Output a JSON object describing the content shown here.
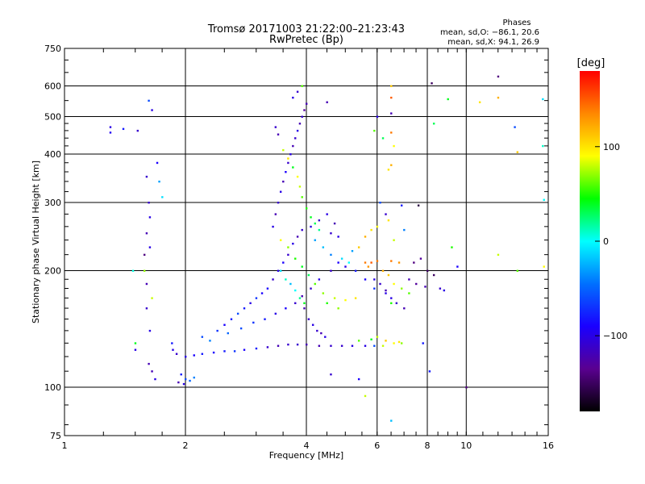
{
  "chart_data": {
    "type": "scatter",
    "title": "Tromsø 20171003 21:22:00–21:23:43",
    "subtitle": "RwPretec (Bp)",
    "xlabel": "Frequency [MHz]",
    "ylabel": "Stationary phase Virtual Height [km]",
    "x_scale": "log",
    "y_scale": "log",
    "xlim": [
      1,
      16
    ],
    "ylim": [
      75,
      750
    ],
    "x_ticks": [
      1,
      2,
      4,
      6,
      8,
      10,
      16
    ],
    "x_tick_labels": [
      "1",
      "2",
      "4",
      "6",
      "8",
      "10",
      "16"
    ],
    "y_ticks": [
      75,
      100,
      200,
      300,
      400,
      500,
      600,
      750
    ],
    "y_tick_labels": [
      "75",
      "100",
      "200",
      "300",
      "400",
      "500",
      "600",
      "750"
    ],
    "grid": true,
    "annotation": {
      "heading": "Phases",
      "line_o": "mean, sd,O: −86.1, 20.6",
      "line_x": "mean, sd,X:  94.1, 26.9"
    },
    "colorbar": {
      "label": "[deg]",
      "range": [
        -180,
        180
      ],
      "ticks": [
        100,
        0,
        -100
      ],
      "tick_labels": [
        "100",
        "0",
        "−100"
      ],
      "colors": [
        "#000000",
        "#5a0090",
        "#1a00ff",
        "#0070ff",
        "#00ffff",
        "#00ff00",
        "#ffff00",
        "#ff8800",
        "#ff0000"
      ]
    },
    "points": [
      [
        1.3,
        470,
        -100
      ],
      [
        1.3,
        455,
        -95
      ],
      [
        1.52,
        460,
        -110
      ],
      [
        1.4,
        465,
        -80
      ],
      [
        1.48,
        200,
        5
      ],
      [
        1.5,
        130,
        40
      ],
      [
        1.62,
        550,
        -60
      ],
      [
        1.65,
        520,
        -100
      ],
      [
        1.6,
        350,
        -110
      ],
      [
        1.7,
        380,
        -90
      ],
      [
        1.72,
        340,
        -30
      ],
      [
        1.75,
        310,
        -10
      ],
      [
        1.62,
        300,
        -110
      ],
      [
        1.63,
        275,
        -100
      ],
      [
        1.6,
        250,
        -120
      ],
      [
        1.63,
        230,
        -100
      ],
      [
        1.58,
        220,
        -140
      ],
      [
        1.58,
        200,
        70
      ],
      [
        1.6,
        185,
        -120
      ],
      [
        1.65,
        170,
        80
      ],
      [
        1.6,
        160,
        -110
      ],
      [
        1.63,
        140,
        -100
      ],
      [
        1.5,
        125,
        -100
      ],
      [
        1.62,
        115,
        -120
      ],
      [
        1.65,
        110,
        -120
      ],
      [
        1.68,
        105,
        -100
      ],
      [
        1.85,
        130,
        -80
      ],
      [
        1.86,
        125,
        -100
      ],
      [
        1.9,
        122,
        -110
      ],
      [
        2.0,
        120,
        -100
      ],
      [
        2.1,
        121,
        -90
      ],
      [
        2.2,
        122,
        -80
      ],
      [
        2.35,
        123,
        -90
      ],
      [
        2.5,
        124,
        -80
      ],
      [
        2.65,
        124,
        -70
      ],
      [
        2.8,
        125,
        -90
      ],
      [
        3.0,
        126,
        -80
      ],
      [
        3.2,
        127,
        -110
      ],
      [
        3.4,
        128,
        -120
      ],
      [
        3.6,
        129,
        -110
      ],
      [
        3.8,
        129,
        -110
      ],
      [
        4.0,
        129,
        -120
      ],
      [
        4.3,
        128,
        -120
      ],
      [
        4.6,
        128,
        -110
      ],
      [
        4.9,
        128,
        -110
      ],
      [
        5.2,
        128,
        -100
      ],
      [
        5.6,
        128,
        -100
      ],
      [
        5.9,
        128,
        -60
      ],
      [
        6.2,
        128,
        80
      ],
      [
        6.6,
        130,
        90
      ],
      [
        6.9,
        130,
        70
      ],
      [
        5.4,
        132,
        60
      ],
      [
        5.8,
        133,
        40
      ],
      [
        6.0,
        135,
        80
      ],
      [
        6.3,
        132,
        110
      ],
      [
        6.8,
        131,
        100
      ],
      [
        1.95,
        108,
        -80
      ],
      [
        2.0,
        105,
        -60
      ],
      [
        2.05,
        104,
        -50
      ],
      [
        1.92,
        103,
        -120
      ],
      [
        2.1,
        106,
        -40
      ],
      [
        1.98,
        102,
        -100
      ],
      [
        2.2,
        135,
        -60
      ],
      [
        2.4,
        140,
        -70
      ],
      [
        2.5,
        145,
        -90
      ],
      [
        2.6,
        150,
        -80
      ],
      [
        2.7,
        155,
        -60
      ],
      [
        2.8,
        160,
        -80
      ],
      [
        2.9,
        165,
        -100
      ],
      [
        3.0,
        170,
        -70
      ],
      [
        3.1,
        175,
        -90
      ],
      [
        3.2,
        180,
        -90
      ],
      [
        3.3,
        190,
        -110
      ],
      [
        3.4,
        200,
        -100
      ],
      [
        3.5,
        210,
        -90
      ],
      [
        3.6,
        220,
        -110
      ],
      [
        3.7,
        235,
        -100
      ],
      [
        3.8,
        245,
        -120
      ],
      [
        3.9,
        255,
        -110
      ],
      [
        2.3,
        132,
        -40
      ],
      [
        2.55,
        138,
        -50
      ],
      [
        2.75,
        142,
        -60
      ],
      [
        2.95,
        147,
        -70
      ],
      [
        3.15,
        150,
        -80
      ],
      [
        3.35,
        155,
        -100
      ],
      [
        3.55,
        160,
        -90
      ],
      [
        3.75,
        165,
        -110
      ],
      [
        3.9,
        172,
        -120
      ],
      [
        4.1,
        180,
        -110
      ],
      [
        4.3,
        190,
        -100
      ],
      [
        4.6,
        200,
        -110
      ],
      [
        4.8,
        210,
        -90
      ],
      [
        5.0,
        205,
        -100
      ],
      [
        5.3,
        200,
        -80
      ],
      [
        5.6,
        190,
        -90
      ],
      [
        5.9,
        180,
        -70
      ],
      [
        6.3,
        175,
        -100
      ],
      [
        3.3,
        260,
        -100
      ],
      [
        3.35,
        280,
        -120
      ],
      [
        3.4,
        300,
        -110
      ],
      [
        3.45,
        320,
        -100
      ],
      [
        3.5,
        340,
        -120
      ],
      [
        3.55,
        360,
        -90
      ],
      [
        3.6,
        380,
        -110
      ],
      [
        3.65,
        400,
        -100
      ],
      [
        3.7,
        420,
        -120
      ],
      [
        3.75,
        440,
        -110
      ],
      [
        3.8,
        460,
        -100
      ],
      [
        3.85,
        480,
        -120
      ],
      [
        3.9,
        500,
        -110
      ],
      [
        3.95,
        520,
        -130
      ],
      [
        4.0,
        540,
        -120
      ],
      [
        3.7,
        560,
        -100
      ],
      [
        3.8,
        580,
        -110
      ],
      [
        3.9,
        600,
        60
      ],
      [
        3.35,
        470,
        -110
      ],
      [
        3.4,
        450,
        -120
      ],
      [
        3.5,
        410,
        80
      ],
      [
        3.6,
        390,
        100
      ],
      [
        3.7,
        370,
        40
      ],
      [
        3.8,
        350,
        90
      ],
      [
        3.85,
        330,
        80
      ],
      [
        3.9,
        310,
        60
      ],
      [
        4.0,
        290,
        50
      ],
      [
        4.1,
        275,
        40
      ],
      [
        4.2,
        265,
        30
      ],
      [
        4.3,
        255,
        20
      ],
      [
        3.45,
        240,
        90
      ],
      [
        3.6,
        230,
        70
      ],
      [
        3.75,
        215,
        50
      ],
      [
        3.9,
        205,
        40
      ],
      [
        4.05,
        195,
        30
      ],
      [
        4.2,
        185,
        60
      ],
      [
        4.4,
        175,
        70
      ],
      [
        4.7,
        170,
        80
      ],
      [
        5.0,
        168,
        90
      ],
      [
        5.3,
        170,
        100
      ],
      [
        4.5,
        165,
        50
      ],
      [
        4.8,
        160,
        70
      ],
      [
        4.1,
        260,
        -100
      ],
      [
        4.3,
        270,
        -110
      ],
      [
        4.5,
        280,
        -100
      ],
      [
        4.7,
        265,
        -120
      ],
      [
        4.6,
        250,
        -110
      ],
      [
        4.8,
        245,
        -100
      ],
      [
        4.2,
        240,
        -30
      ],
      [
        4.4,
        230,
        -20
      ],
      [
        4.6,
        220,
        -40
      ],
      [
        4.9,
        215,
        -10
      ],
      [
        5.1,
        210,
        0
      ],
      [
        5.2,
        225,
        -30
      ],
      [
        3.95,
        160,
        -120
      ],
      [
        4.05,
        150,
        -110
      ],
      [
        4.15,
        145,
        -100
      ],
      [
        4.25,
        140,
        -110
      ],
      [
        4.35,
        138,
        -120
      ],
      [
        4.45,
        135,
        -100
      ],
      [
        3.45,
        200,
        -10
      ],
      [
        3.55,
        190,
        10
      ],
      [
        3.65,
        185,
        -20
      ],
      [
        3.75,
        178,
        0
      ],
      [
        3.85,
        170,
        20
      ],
      [
        3.95,
        165,
        40
      ],
      [
        5.6,
        210,
        140
      ],
      [
        5.8,
        210,
        150
      ],
      [
        6.0,
        212,
        140
      ],
      [
        5.7,
        205,
        130
      ],
      [
        6.5,
        212,
        140
      ],
      [
        6.8,
        210,
        130
      ],
      [
        5.4,
        230,
        110
      ],
      [
        5.6,
        245,
        120
      ],
      [
        5.8,
        255,
        100
      ],
      [
        6.0,
        260,
        90
      ],
      [
        6.4,
        270,
        100
      ],
      [
        6.6,
        240,
        80
      ],
      [
        6.2,
        200,
        120
      ],
      [
        6.4,
        195,
        110
      ],
      [
        6.6,
        185,
        90
      ],
      [
        6.9,
        180,
        70
      ],
      [
        7.2,
        175,
        60
      ],
      [
        6.5,
        165,
        50
      ],
      [
        5.9,
        190,
        -100
      ],
      [
        6.1,
        185,
        -110
      ],
      [
        6.3,
        178,
        -120
      ],
      [
        6.5,
        170,
        -100
      ],
      [
        6.7,
        165,
        -110
      ],
      [
        7.0,
        160,
        -120
      ],
      [
        7.4,
        210,
        -140
      ],
      [
        7.7,
        215,
        -130
      ],
      [
        8.0,
        200,
        -150
      ],
      [
        8.3,
        195,
        -150
      ],
      [
        8.6,
        180,
        -110
      ],
      [
        8.8,
        178,
        -100
      ],
      [
        7.2,
        190,
        -120
      ],
      [
        7.5,
        185,
        -130
      ],
      [
        7.9,
        182,
        -120
      ],
      [
        7.6,
        295,
        -160
      ],
      [
        7.8,
        130,
        -80
      ],
      [
        8.1,
        110,
        -80
      ],
      [
        6.5,
        600,
        110
      ],
      [
        6.5,
        560,
        150
      ],
      [
        6.5,
        510,
        -120
      ],
      [
        6.5,
        455,
        140
      ],
      [
        6.6,
        420,
        90
      ],
      [
        6.5,
        375,
        120
      ],
      [
        6.4,
        365,
        100
      ],
      [
        6.2,
        440,
        30
      ],
      [
        5.9,
        460,
        60
      ],
      [
        6.0,
        500,
        -100
      ],
      [
        6.3,
        280,
        -110
      ],
      [
        6.1,
        300,
        -60
      ],
      [
        5.6,
        95,
        80
      ],
      [
        6.5,
        82,
        -20
      ],
      [
        4.6,
        108,
        -110
      ],
      [
        5.4,
        105,
        -90
      ],
      [
        4.5,
        545,
        -120
      ],
      [
        10.0,
        100,
        -140
      ],
      [
        8.2,
        610,
        -150
      ],
      [
        8.3,
        480,
        30
      ],
      [
        9.2,
        230,
        50
      ],
      [
        9.5,
        205,
        -90
      ],
      [
        10.8,
        545,
        100
      ],
      [
        12.0,
        560,
        120
      ],
      [
        12.0,
        635,
        -140
      ],
      [
        12.0,
        220,
        80
      ],
      [
        13.2,
        470,
        -60
      ],
      [
        13.4,
        405,
        110
      ],
      [
        13.4,
        200,
        60
      ],
      [
        15.5,
        555,
        -10
      ],
      [
        15.5,
        420,
        10
      ],
      [
        15.6,
        305,
        0
      ],
      [
        15.6,
        205,
        90
      ],
      [
        9.0,
        555,
        40
      ],
      [
        6.9,
        295,
        -80
      ],
      [
        7.0,
        255,
        -40
      ]
    ]
  }
}
